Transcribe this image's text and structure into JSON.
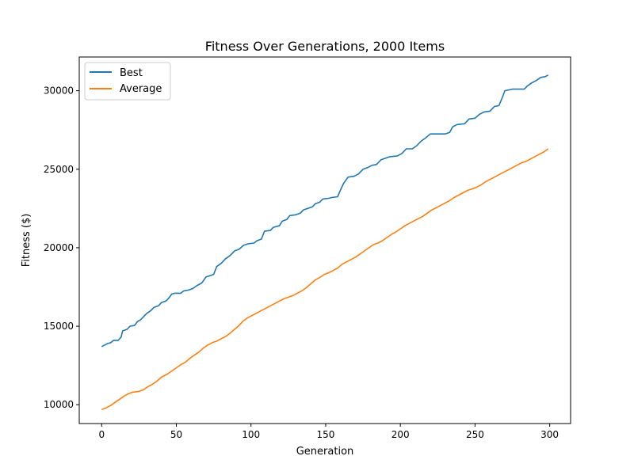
{
  "chart_data": {
    "type": "line",
    "title": "Fitness Over Generations, 2000 Items",
    "xlabel": "Generation",
    "ylabel": "Fitness ($)",
    "xlim": [
      -15,
      314
    ],
    "ylim": [
      8800,
      32150
    ],
    "xticks": [
      0,
      50,
      100,
      150,
      200,
      250,
      300
    ],
    "yticks": [
      10000,
      15000,
      20000,
      25000,
      30000
    ],
    "grid": false,
    "legend_position": "upper-left",
    "series": [
      {
        "name": "Best",
        "color": "#1f77b4",
        "points": [
          [
            0,
            13700
          ],
          [
            2,
            13800
          ],
          [
            4,
            13900
          ],
          [
            6,
            13950
          ],
          [
            8,
            14100
          ],
          [
            11,
            14100
          ],
          [
            13,
            14300
          ],
          [
            14,
            14700
          ],
          [
            17,
            14800
          ],
          [
            19,
            15000
          ],
          [
            22,
            15050
          ],
          [
            24,
            15300
          ],
          [
            26,
            15400
          ],
          [
            28,
            15600
          ],
          [
            30,
            15800
          ],
          [
            33,
            16000
          ],
          [
            35,
            16200
          ],
          [
            38,
            16300
          ],
          [
            40,
            16500
          ],
          [
            43,
            16600
          ],
          [
            45,
            16800
          ],
          [
            47,
            17050
          ],
          [
            49,
            17100
          ],
          [
            53,
            17100
          ],
          [
            55,
            17250
          ],
          [
            58,
            17300
          ],
          [
            61,
            17400
          ],
          [
            64,
            17600
          ],
          [
            67,
            17750
          ],
          [
            70,
            18150
          ],
          [
            72,
            18200
          ],
          [
            75,
            18300
          ],
          [
            77,
            18800
          ],
          [
            80,
            19000
          ],
          [
            83,
            19300
          ],
          [
            86,
            19500
          ],
          [
            89,
            19800
          ],
          [
            92,
            19900
          ],
          [
            95,
            20150
          ],
          [
            98,
            20250
          ],
          [
            102,
            20300
          ],
          [
            104,
            20450
          ],
          [
            107,
            20550
          ],
          [
            109,
            21050
          ],
          [
            113,
            21100
          ],
          [
            115,
            21300
          ],
          [
            119,
            21400
          ],
          [
            121,
            21700
          ],
          [
            124,
            21800
          ],
          [
            126,
            22050
          ],
          [
            130,
            22100
          ],
          [
            133,
            22200
          ],
          [
            135,
            22400
          ],
          [
            138,
            22500
          ],
          [
            141,
            22600
          ],
          [
            143,
            22800
          ],
          [
            146,
            22900
          ],
          [
            148,
            23100
          ],
          [
            152,
            23150
          ],
          [
            154,
            23200
          ],
          [
            158,
            23250
          ],
          [
            160,
            23700
          ],
          [
            162,
            24100
          ],
          [
            165,
            24500
          ],
          [
            169,
            24550
          ],
          [
            172,
            24700
          ],
          [
            175,
            25000
          ],
          [
            178,
            25100
          ],
          [
            181,
            25250
          ],
          [
            184,
            25300
          ],
          [
            187,
            25600
          ],
          [
            190,
            25700
          ],
          [
            193,
            25800
          ],
          [
            198,
            25850
          ],
          [
            201,
            26000
          ],
          [
            204,
            26300
          ],
          [
            208,
            26300
          ],
          [
            211,
            26500
          ],
          [
            214,
            26800
          ],
          [
            217,
            27000
          ],
          [
            220,
            27250
          ],
          [
            230,
            27250
          ],
          [
            233,
            27350
          ],
          [
            235,
            27700
          ],
          [
            238,
            27850
          ],
          [
            243,
            27900
          ],
          [
            246,
            28200
          ],
          [
            250,
            28250
          ],
          [
            253,
            28500
          ],
          [
            256,
            28650
          ],
          [
            260,
            28700
          ],
          [
            263,
            29000
          ],
          [
            266,
            29050
          ],
          [
            268,
            29500
          ],
          [
            270,
            30000
          ],
          [
            275,
            30100
          ],
          [
            283,
            30100
          ],
          [
            285,
            30300
          ],
          [
            288,
            30500
          ],
          [
            291,
            30650
          ],
          [
            294,
            30850
          ],
          [
            297,
            30900
          ],
          [
            299,
            31000
          ]
        ]
      },
      {
        "name": "Average",
        "color": "#ff7f0e",
        "points": [
          [
            0,
            9700
          ],
          [
            3,
            9800
          ],
          [
            6,
            9950
          ],
          [
            9,
            10150
          ],
          [
            12,
            10350
          ],
          [
            15,
            10550
          ],
          [
            18,
            10700
          ],
          [
            21,
            10800
          ],
          [
            25,
            10850
          ],
          [
            28,
            10950
          ],
          [
            31,
            11150
          ],
          [
            34,
            11300
          ],
          [
            37,
            11500
          ],
          [
            40,
            11750
          ],
          [
            44,
            11950
          ],
          [
            47,
            12150
          ],
          [
            50,
            12350
          ],
          [
            53,
            12550
          ],
          [
            56,
            12700
          ],
          [
            59,
            12950
          ],
          [
            62,
            13150
          ],
          [
            65,
            13350
          ],
          [
            68,
            13600
          ],
          [
            71,
            13800
          ],
          [
            74,
            13950
          ],
          [
            77,
            14050
          ],
          [
            80,
            14200
          ],
          [
            83,
            14350
          ],
          [
            86,
            14550
          ],
          [
            89,
            14800
          ],
          [
            92,
            15050
          ],
          [
            95,
            15350
          ],
          [
            98,
            15550
          ],
          [
            101,
            15700
          ],
          [
            104,
            15850
          ],
          [
            107,
            16000
          ],
          [
            110,
            16150
          ],
          [
            113,
            16300
          ],
          [
            116,
            16450
          ],
          [
            119,
            16600
          ],
          [
            122,
            16750
          ],
          [
            125,
            16850
          ],
          [
            128,
            16950
          ],
          [
            131,
            17100
          ],
          [
            134,
            17250
          ],
          [
            137,
            17450
          ],
          [
            140,
            17700
          ],
          [
            143,
            17950
          ],
          [
            146,
            18100
          ],
          [
            149,
            18300
          ],
          [
            152,
            18400
          ],
          [
            155,
            18550
          ],
          [
            158,
            18700
          ],
          [
            161,
            18950
          ],
          [
            164,
            19100
          ],
          [
            167,
            19250
          ],
          [
            170,
            19400
          ],
          [
            173,
            19600
          ],
          [
            176,
            19800
          ],
          [
            179,
            20000
          ],
          [
            182,
            20200
          ],
          [
            185,
            20300
          ],
          [
            188,
            20450
          ],
          [
            191,
            20650
          ],
          [
            194,
            20850
          ],
          [
            197,
            21000
          ],
          [
            200,
            21200
          ],
          [
            203,
            21400
          ],
          [
            206,
            21550
          ],
          [
            209,
            21700
          ],
          [
            212,
            21850
          ],
          [
            215,
            22000
          ],
          [
            218,
            22200
          ],
          [
            221,
            22400
          ],
          [
            224,
            22550
          ],
          [
            227,
            22700
          ],
          [
            230,
            22850
          ],
          [
            233,
            23000
          ],
          [
            236,
            23200
          ],
          [
            239,
            23350
          ],
          [
            242,
            23500
          ],
          [
            245,
            23650
          ],
          [
            248,
            23750
          ],
          [
            251,
            23850
          ],
          [
            254,
            24000
          ],
          [
            257,
            24200
          ],
          [
            260,
            24350
          ],
          [
            263,
            24500
          ],
          [
            266,
            24650
          ],
          [
            269,
            24800
          ],
          [
            272,
            24950
          ],
          [
            275,
            25100
          ],
          [
            278,
            25250
          ],
          [
            281,
            25400
          ],
          [
            284,
            25500
          ],
          [
            287,
            25650
          ],
          [
            290,
            25800
          ],
          [
            293,
            25950
          ],
          [
            296,
            26100
          ],
          [
            299,
            26300
          ]
        ]
      }
    ]
  }
}
